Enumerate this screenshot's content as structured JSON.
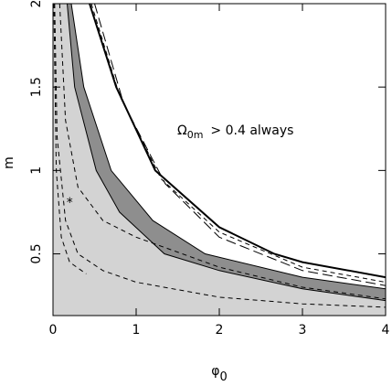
{
  "chart_data": {
    "type": "contour",
    "xlabel": {
      "symbol": "φ",
      "sub": "0"
    },
    "ylabel": "m",
    "annotation": {
      "symbol": "Ω",
      "sub": "0m",
      "rest": "> 0.4 always"
    },
    "xlim": [
      0,
      4
    ],
    "ylim": [
      0.13,
      2
    ],
    "xticks": [
      0,
      1,
      2,
      3,
      4
    ],
    "yticks": [
      0.5,
      1,
      1.5,
      2
    ],
    "series": [
      {
        "color": "#000000",
        "width": 1,
        "dash": "solid",
        "fill": "#8e8e8e",
        "x": [
          0.22,
          0.37,
          0.7,
          1.2,
          1.83,
          3,
          4
        ],
        "values": [
          2,
          1.5,
          1,
          0.7,
          0.5,
          0.36,
          0.29
        ]
      },
      {
        "color": "#000000",
        "width": 1,
        "dash": "solid",
        "fill": "#d3d3d3",
        "x": [
          0.17,
          0.26,
          0.52,
          0.8,
          1.34,
          2,
          3,
          4
        ],
        "values": [
          2,
          1.5,
          1,
          0.75,
          0.5,
          0.4,
          0.29,
          0.22
        ]
      },
      {
        "color": "#000000",
        "width": 2,
        "dash": "solid",
        "fill": null,
        "x": [
          0.44,
          0.76,
          1.23,
          2,
          2.66,
          3,
          4
        ],
        "values": [
          2,
          1.5,
          1,
          0.66,
          0.5,
          0.45,
          0.36
        ]
      },
      {
        "color": "#000000",
        "width": 1,
        "dash": "dashed",
        "fill": null,
        "x": [
          0.46,
          0.8,
          1.3,
          2,
          3,
          4
        ],
        "values": [
          2,
          1.45,
          0.95,
          0.63,
          0.42,
          0.33
        ]
      },
      {
        "color": "#000000",
        "width": 1,
        "dash": "long-dashed",
        "fill": null,
        "x": [
          0.5,
          0.85,
          1.35,
          2,
          3,
          4
        ],
        "values": [
          2,
          1.4,
          0.92,
          0.6,
          0.4,
          0.31
        ]
      },
      {
        "color": "#000000",
        "width": 1,
        "dash": "dashed",
        "fill": null,
        "x": [
          0.08,
          0.15,
          0.3,
          0.6,
          1,
          2,
          3,
          4
        ],
        "values": [
          2,
          1.3,
          0.9,
          0.7,
          0.6,
          0.42,
          0.3,
          0.23
        ]
      },
      {
        "color": "#000000",
        "width": 1,
        "dash": "dashed",
        "fill": null,
        "x": [
          0.02,
          0.05,
          0.15,
          0.3,
          0.6,
          1,
          2,
          3,
          4
        ],
        "values": [
          2,
          1.2,
          0.7,
          0.5,
          0.4,
          0.33,
          0.24,
          0.2,
          0.18
        ]
      },
      {
        "color": "#000000",
        "width": 1,
        "dash": "dashed",
        "fill": null,
        "x": [
          0.01,
          0.04,
          0.1,
          0.2,
          0.4
        ],
        "values": [
          2,
          1,
          0.6,
          0.45,
          0.38
        ]
      }
    ],
    "points": {
      "x": [
        0.2
      ],
      "values": [
        0.82
      ],
      "marker": "*",
      "color": "#000000"
    }
  }
}
